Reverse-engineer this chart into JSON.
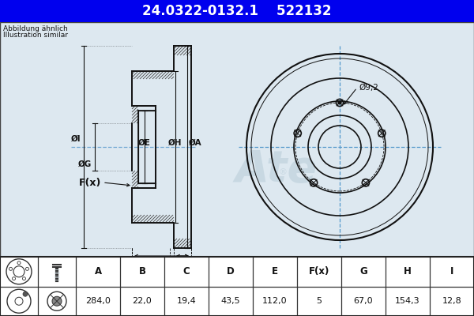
{
  "title_part": "24.0322-0132.1",
  "title_code": "522132",
  "header_bg": "#0000ee",
  "header_text_color": "#ffffff",
  "bg_color": "#c8d8e8",
  "drawing_bg": "#dce8f0",
  "table_bg": "#ffffff",
  "table_header": [
    "A",
    "B",
    "C",
    "D",
    "E",
    "F(x)",
    "G",
    "H",
    "I"
  ],
  "table_values": [
    "284,0",
    "22,0",
    "19,4",
    "43,5",
    "112,0",
    "5",
    "67,0",
    "154,3",
    "12,8"
  ],
  "note_line1": "Abbildung ähnlich",
  "note_line2": "Illustration similar",
  "dim_label_hole": "Ø9,2",
  "crosshair_color": "#5599cc",
  "line_color": "#111111",
  "dim_color": "#111111"
}
